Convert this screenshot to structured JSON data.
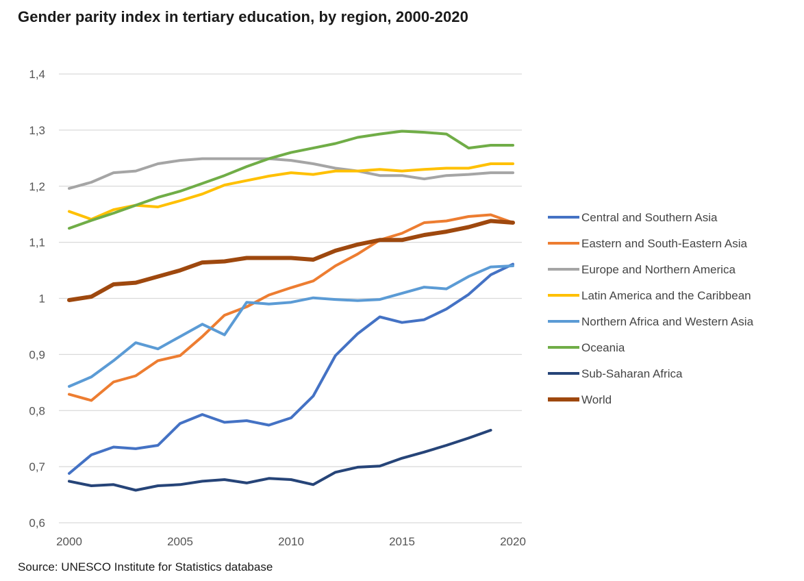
{
  "chart_data": {
    "type": "line",
    "title": "Gender parity index in tertiary education, by region, 2000-2020",
    "source": "Source: UNESCO Institute for Statistics database",
    "xlabel": "",
    "ylabel": "",
    "x": [
      2000,
      2001,
      2002,
      2003,
      2004,
      2005,
      2006,
      2007,
      2008,
      2009,
      2010,
      2011,
      2012,
      2013,
      2014,
      2015,
      2016,
      2017,
      2018,
      2019,
      2020
    ],
    "xticks": [
      2000,
      2005,
      2010,
      2015,
      2020
    ],
    "xtick_labels": [
      "2000",
      "2005",
      "2010",
      "2015",
      "2020"
    ],
    "xlim": [
      2000,
      2020
    ],
    "ylim": [
      0.6,
      1.4
    ],
    "yticks": [
      0.6,
      0.7,
      0.8,
      0.9,
      1.0,
      1.1,
      1.2,
      1.3,
      1.4
    ],
    "ytick_labels": [
      "0,6",
      "0,7",
      "0,8",
      "0,9",
      "1",
      "1,1",
      "1,2",
      "1,3",
      "1,4"
    ],
    "grid": true,
    "legend_position": "right",
    "series": [
      {
        "name": "Central and Southern Asia",
        "color": "#4472C4",
        "width": 4,
        "values": [
          0.688,
          0.721,
          0.735,
          0.732,
          0.738,
          0.777,
          0.793,
          0.779,
          0.782,
          0.774,
          0.787,
          0.826,
          0.898,
          0.937,
          0.967,
          0.957,
          0.962,
          0.981,
          1.007,
          1.042,
          1.061
        ]
      },
      {
        "name": "Eastern and South-Eastern Asia",
        "color": "#ED7D31",
        "width": 4,
        "values": [
          0.829,
          0.818,
          0.851,
          0.862,
          0.889,
          0.898,
          0.932,
          0.97,
          0.985,
          1.006,
          1.019,
          1.031,
          1.058,
          1.079,
          1.104,
          1.116,
          1.135,
          1.138,
          1.146,
          1.149,
          1.135
        ]
      },
      {
        "name": "Europe and Northern America",
        "color": "#A5A5A5",
        "width": 4,
        "values": [
          1.196,
          1.207,
          1.224,
          1.227,
          1.24,
          1.246,
          1.249,
          1.249,
          1.249,
          1.249,
          1.246,
          1.24,
          1.232,
          1.227,
          1.219,
          1.219,
          1.213,
          1.219,
          1.221,
          1.224,
          1.224
        ]
      },
      {
        "name": "Latin America and the Caribbean",
        "color": "#FFC000",
        "width": 4,
        "values": [
          1.155,
          1.141,
          1.158,
          1.166,
          1.163,
          1.174,
          1.186,
          1.202,
          1.21,
          1.218,
          1.224,
          1.221,
          1.227,
          1.227,
          1.23,
          1.227,
          1.23,
          1.232,
          1.232,
          1.24,
          1.24
        ]
      },
      {
        "name": "Northern Africa and Western Asia",
        "color": "#5B9BD5",
        "width": 4,
        "values": [
          0.843,
          0.86,
          0.889,
          0.921,
          0.91,
          0.932,
          0.954,
          0.935,
          0.993,
          0.99,
          0.993,
          1.001,
          0.998,
          0.996,
          0.998,
          1.009,
          1.02,
          1.017,
          1.039,
          1.056,
          1.058
        ]
      },
      {
        "name": "Oceania",
        "color": "#70AD47",
        "width": 4,
        "values": [
          1.125,
          1.139,
          1.152,
          1.166,
          1.18,
          1.191,
          1.205,
          1.219,
          1.235,
          1.249,
          1.26,
          1.268,
          1.276,
          1.287,
          1.293,
          1.298,
          1.296,
          1.293,
          1.268,
          1.273,
          1.273
        ]
      },
      {
        "name": "Sub-Saharan Africa",
        "color": "#264478",
        "width": 4,
        "values": [
          0.674,
          0.666,
          0.668,
          0.658,
          0.666,
          0.668,
          0.674,
          0.677,
          0.671,
          0.679,
          0.677,
          0.668,
          0.69,
          0.699,
          0.701,
          0.715,
          0.726,
          0.738,
          0.751,
          0.765,
          null
        ]
      },
      {
        "name": "World",
        "color": "#9E480E",
        "width": 6,
        "values": [
          0.997,
          1.003,
          1.025,
          1.028,
          1.039,
          1.05,
          1.064,
          1.066,
          1.072,
          1.072,
          1.072,
          1.069,
          1.085,
          1.096,
          1.104,
          1.104,
          1.113,
          1.119,
          1.127,
          1.138,
          1.135
        ]
      }
    ]
  }
}
